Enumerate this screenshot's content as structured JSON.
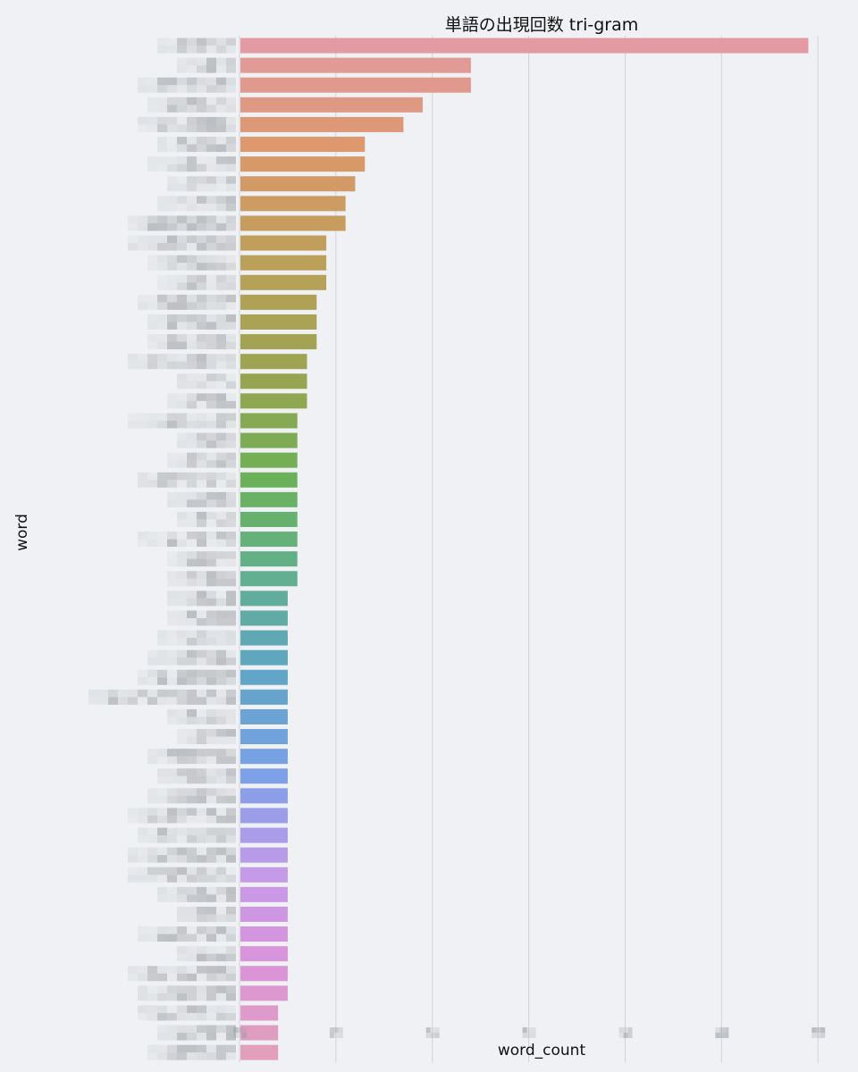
{
  "chart_data": {
    "type": "bar",
    "orientation": "horizontal",
    "title": "単語の出現回数 tri-gram",
    "xlabel": "word_count",
    "ylabel": "word",
    "grid": "vertical",
    "legend": "none",
    "tick_labels_obscured": true,
    "xlim": [
      0,
      6.1
    ],
    "values": [
      5.9,
      2.4,
      2.4,
      1.9,
      1.7,
      1.3,
      1.3,
      1.2,
      1.1,
      1.1,
      0.9,
      0.9,
      0.9,
      0.8,
      0.8,
      0.8,
      0.7,
      0.7,
      0.7,
      0.6,
      0.6,
      0.6,
      0.6,
      0.6,
      0.6,
      0.6,
      0.6,
      0.6,
      0.5,
      0.5,
      0.5,
      0.5,
      0.5,
      0.5,
      0.5,
      0.5,
      0.5,
      0.5,
      0.5,
      0.5,
      0.5,
      0.5,
      0.5,
      0.5,
      0.5,
      0.5,
      0.5,
      0.5,
      0.5,
      0.4,
      0.4,
      0.4
    ],
    "xticks": [
      0,
      1,
      2,
      3,
      4,
      5,
      6
    ],
    "colors": {
      "gradient": "husl-palette from #e39aa2 (top) through #6bb158, #5fa6c4, #c79be8 to #e19fbb (bottom)"
    }
  }
}
